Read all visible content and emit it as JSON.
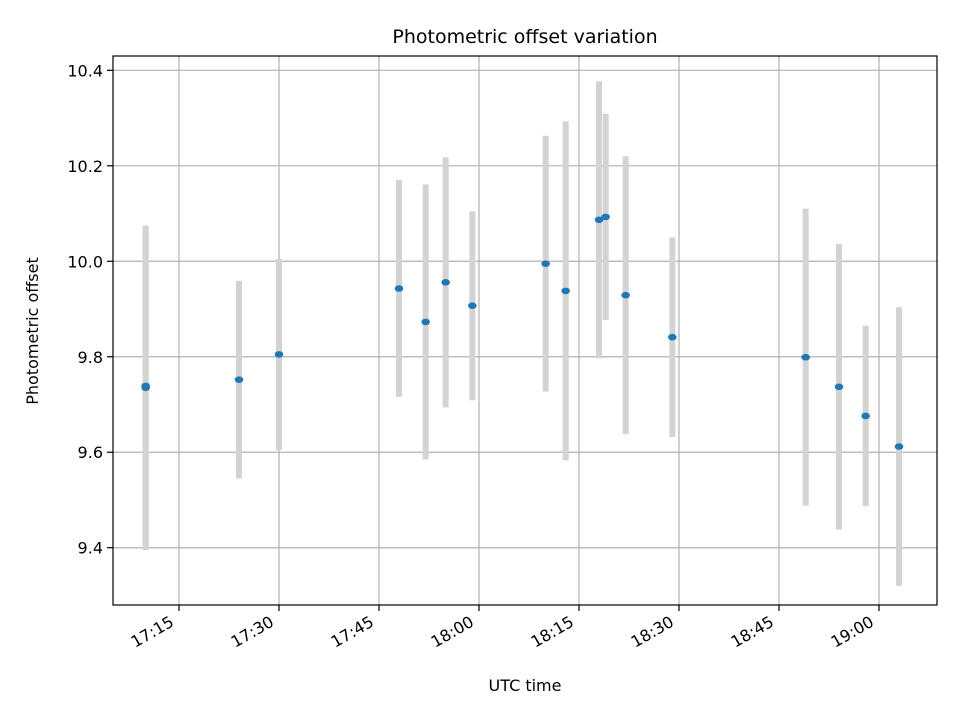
{
  "chart_data": {
    "type": "scatter",
    "title": "Photometric offset variation",
    "xlabel": "UTC time",
    "ylabel": "Photometric offset",
    "x_tick_labels": [
      "17:15",
      "17:30",
      "17:45",
      "18:00",
      "18:15",
      "18:30",
      "18:45",
      "19:00"
    ],
    "x_tick_minutes": [
      1035,
      1050,
      1065,
      1080,
      1095,
      1110,
      1125,
      1140
    ],
    "xlim_minutes": [
      1025.1,
      1148.7
    ],
    "y_ticks": [
      9.4,
      9.6,
      9.8,
      10.0,
      10.2,
      10.4
    ],
    "y_tick_labels": [
      "9.4",
      "9.6",
      "9.8",
      "10.0",
      "10.2",
      "10.4"
    ],
    "ylim": [
      9.28,
      10.43
    ],
    "grid": true,
    "errorbar_color": "#d3d3d3",
    "point_color": "#1f77b4",
    "points": [
      {
        "time": "17:10",
        "y": 9.735,
        "ylow": 9.395,
        "yhigh": 10.075
      },
      {
        "time": "17:10",
        "y": 9.739,
        "ylow": 9.407,
        "yhigh": 10.071
      },
      {
        "time": "17:24",
        "y": 9.752,
        "ylow": 9.545,
        "yhigh": 9.959
      },
      {
        "time": "17:30",
        "y": 9.805,
        "ylow": 9.605,
        "yhigh": 10.005
      },
      {
        "time": "17:48",
        "y": 9.943,
        "ylow": 9.716,
        "yhigh": 10.17
      },
      {
        "time": "17:52",
        "y": 9.873,
        "ylow": 9.585,
        "yhigh": 10.161
      },
      {
        "time": "17:55",
        "y": 9.956,
        "ylow": 9.694,
        "yhigh": 10.218
      },
      {
        "time": "17:59",
        "y": 9.907,
        "ylow": 9.709,
        "yhigh": 10.105
      },
      {
        "time": "18:10",
        "y": 9.995,
        "ylow": 9.727,
        "yhigh": 10.263
      },
      {
        "time": "18:13",
        "y": 9.938,
        "ylow": 9.583,
        "yhigh": 10.293
      },
      {
        "time": "18:18",
        "y": 10.087,
        "ylow": 9.797,
        "yhigh": 10.377
      },
      {
        "time": "18:19",
        "y": 10.093,
        "ylow": 9.877,
        "yhigh": 10.309
      },
      {
        "time": "18:22",
        "y": 9.929,
        "ylow": 9.638,
        "yhigh": 10.22
      },
      {
        "time": "18:29",
        "y": 9.841,
        "ylow": 9.632,
        "yhigh": 10.05
      },
      {
        "time": "18:49",
        "y": 9.799,
        "ylow": 9.488,
        "yhigh": 10.11
      },
      {
        "time": "18:54",
        "y": 9.737,
        "ylow": 9.438,
        "yhigh": 10.036
      },
      {
        "time": "18:58",
        "y": 9.676,
        "ylow": 9.487,
        "yhigh": 9.865
      },
      {
        "time": "19:03",
        "y": 9.612,
        "ylow": 9.32,
        "yhigh": 9.904
      }
    ]
  }
}
